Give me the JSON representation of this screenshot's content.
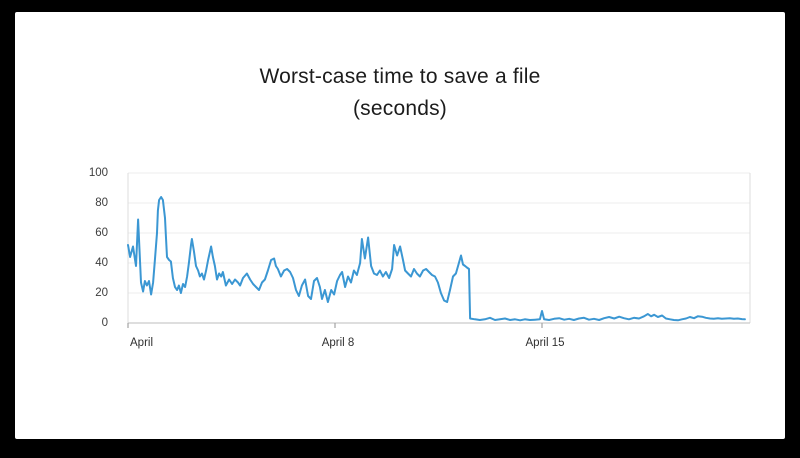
{
  "canvas": {
    "frame_color": "#000000",
    "card_color": "#ffffff"
  },
  "chart_data": {
    "type": "line",
    "title": "Worst-case time to save a file",
    "subtitle": "(seconds)",
    "xlabel": "",
    "ylabel": "",
    "ylim": [
      0,
      100
    ],
    "yticks": [
      0,
      20,
      40,
      60,
      80,
      100
    ],
    "grid": true,
    "legend": "none",
    "line_color": "#3b97d3",
    "axis_color": "#c9c9c9",
    "grid_color": "#ececec",
    "border_color": "#dcdcdc",
    "tick_color": "#a3a3a3",
    "xticks": [
      {
        "day": 0,
        "label": "April",
        "align": "left"
      },
      {
        "day": 7,
        "label": "April 8",
        "align": "center"
      },
      {
        "day": 14,
        "label": "April 15",
        "align": "center"
      }
    ],
    "x_unit": "days since April 1",
    "y_unit": "seconds",
    "points": [
      [
        0,
        52
      ],
      [
        0.07,
        44
      ],
      [
        0.17,
        51
      ],
      [
        0.27,
        38
      ],
      [
        0.34,
        69
      ],
      [
        0.41,
        40
      ],
      [
        0.44,
        27
      ],
      [
        0.51,
        21
      ],
      [
        0.57,
        28
      ],
      [
        0.64,
        25
      ],
      [
        0.71,
        28
      ],
      [
        0.78,
        19
      ],
      [
        0.85,
        27
      ],
      [
        0.91,
        42
      ],
      [
        0.98,
        60
      ],
      [
        1.01,
        75
      ],
      [
        1.05,
        82
      ],
      [
        1.12,
        84
      ],
      [
        1.18,
        82
      ],
      [
        1.25,
        70
      ],
      [
        1.28,
        58
      ],
      [
        1.32,
        44
      ],
      [
        1.39,
        42
      ],
      [
        1.45,
        41
      ],
      [
        1.52,
        30
      ],
      [
        1.59,
        24
      ],
      [
        1.66,
        22
      ],
      [
        1.72,
        25
      ],
      [
        1.79,
        20
      ],
      [
        1.86,
        26
      ],
      [
        1.93,
        24
      ],
      [
        2.0,
        31
      ],
      [
        2.06,
        40
      ],
      [
        2.13,
        52
      ],
      [
        2.16,
        56
      ],
      [
        2.23,
        48
      ],
      [
        2.3,
        38
      ],
      [
        2.37,
        35
      ],
      [
        2.43,
        31
      ],
      [
        2.5,
        33
      ],
      [
        2.57,
        29
      ],
      [
        2.64,
        35
      ],
      [
        2.71,
        42
      ],
      [
        2.81,
        51
      ],
      [
        2.87,
        44
      ],
      [
        2.94,
        38
      ],
      [
        3.01,
        29
      ],
      [
        3.08,
        33
      ],
      [
        3.15,
        31
      ],
      [
        3.21,
        34
      ],
      [
        3.31,
        25
      ],
      [
        3.42,
        29
      ],
      [
        3.52,
        26
      ],
      [
        3.62,
        29
      ],
      [
        3.72,
        27
      ],
      [
        3.79,
        25
      ],
      [
        3.89,
        30
      ],
      [
        4.02,
        33
      ],
      [
        4.13,
        29
      ],
      [
        4.23,
        26
      ],
      [
        4.33,
        24
      ],
      [
        4.43,
        22
      ],
      [
        4.53,
        27
      ],
      [
        4.63,
        29
      ],
      [
        4.73,
        35
      ],
      [
        4.84,
        42
      ],
      [
        4.94,
        43
      ],
      [
        5.0,
        38
      ],
      [
        5.07,
        36
      ],
      [
        5.17,
        31
      ],
      [
        5.28,
        35
      ],
      [
        5.38,
        36
      ],
      [
        5.48,
        34
      ],
      [
        5.58,
        30
      ],
      [
        5.68,
        22
      ],
      [
        5.78,
        18
      ],
      [
        5.88,
        25
      ],
      [
        5.99,
        29
      ],
      [
        6.09,
        18
      ],
      [
        6.19,
        16
      ],
      [
        6.29,
        28
      ],
      [
        6.39,
        30
      ],
      [
        6.49,
        24
      ],
      [
        6.56,
        16
      ],
      [
        6.66,
        22
      ],
      [
        6.76,
        14
      ],
      [
        6.87,
        22
      ],
      [
        6.97,
        19
      ],
      [
        7.07,
        28
      ],
      [
        7.17,
        32
      ],
      [
        7.24,
        34
      ],
      [
        7.34,
        24
      ],
      [
        7.44,
        31
      ],
      [
        7.54,
        27
      ],
      [
        7.64,
        35
      ],
      [
        7.74,
        32
      ],
      [
        7.85,
        40
      ],
      [
        7.91,
        56
      ],
      [
        8.01,
        43
      ],
      [
        8.12,
        57
      ],
      [
        8.22,
        38
      ],
      [
        8.32,
        33
      ],
      [
        8.42,
        32
      ],
      [
        8.52,
        35
      ],
      [
        8.62,
        31
      ],
      [
        8.72,
        34
      ],
      [
        8.83,
        30
      ],
      [
        8.93,
        36
      ],
      [
        9.0,
        52
      ],
      [
        9.1,
        45
      ],
      [
        9.2,
        51
      ],
      [
        9.3,
        42
      ],
      [
        9.37,
        35
      ],
      [
        9.47,
        33
      ],
      [
        9.57,
        31
      ],
      [
        9.67,
        36
      ],
      [
        9.77,
        33
      ],
      [
        9.87,
        31
      ],
      [
        9.98,
        35
      ],
      [
        10.08,
        36
      ],
      [
        10.18,
        34
      ],
      [
        10.28,
        32
      ],
      [
        10.38,
        31
      ],
      [
        10.48,
        27
      ],
      [
        10.58,
        20
      ],
      [
        10.69,
        15
      ],
      [
        10.79,
        14
      ],
      [
        10.89,
        22
      ],
      [
        10.99,
        31
      ],
      [
        11.09,
        33
      ],
      [
        11.19,
        40
      ],
      [
        11.26,
        45
      ],
      [
        11.33,
        39
      ],
      [
        11.4,
        38
      ],
      [
        11.46,
        37
      ],
      [
        11.53,
        36
      ],
      [
        11.57,
        3
      ],
      [
        11.73,
        2.5
      ],
      [
        11.9,
        2
      ],
      [
        12.07,
        2.5
      ],
      [
        12.24,
        3.5
      ],
      [
        12.41,
        2
      ],
      [
        12.58,
        2.5
      ],
      [
        12.75,
        3
      ],
      [
        12.92,
        2
      ],
      [
        13.09,
        2.5
      ],
      [
        13.26,
        1.8
      ],
      [
        13.42,
        2.5
      ],
      [
        13.59,
        2
      ],
      [
        13.76,
        2.2
      ],
      [
        13.93,
        2.5
      ],
      [
        14.0,
        8
      ],
      [
        14.07,
        2.5
      ],
      [
        14.24,
        2
      ],
      [
        14.41,
        2.8
      ],
      [
        14.58,
        3.2
      ],
      [
        14.75,
        2.2
      ],
      [
        14.92,
        2.8
      ],
      [
        15.08,
        2
      ],
      [
        15.25,
        3
      ],
      [
        15.42,
        3.5
      ],
      [
        15.59,
        2.2
      ],
      [
        15.76,
        2.8
      ],
      [
        15.93,
        2
      ],
      [
        16.1,
        3.2
      ],
      [
        16.27,
        4
      ],
      [
        16.44,
        3
      ],
      [
        16.61,
        4.2
      ],
      [
        16.77,
        3.2
      ],
      [
        16.94,
        2.5
      ],
      [
        17.11,
        3.5
      ],
      [
        17.28,
        3
      ],
      [
        17.45,
        4.5
      ],
      [
        17.58,
        6
      ],
      [
        17.69,
        4.5
      ],
      [
        17.79,
        5.5
      ],
      [
        17.92,
        4
      ],
      [
        18.06,
        5
      ],
      [
        18.19,
        3
      ],
      [
        18.33,
        2.5
      ],
      [
        18.46,
        2
      ],
      [
        18.6,
        1.8
      ],
      [
        18.73,
        2.5
      ],
      [
        18.87,
        3
      ],
      [
        19.0,
        4
      ],
      [
        19.14,
        3.2
      ],
      [
        19.27,
        4.5
      ],
      [
        19.41,
        4.2
      ],
      [
        19.54,
        3.5
      ],
      [
        19.68,
        3
      ],
      [
        19.81,
        2.8
      ],
      [
        19.95,
        3.2
      ],
      [
        20.08,
        2.8
      ],
      [
        20.22,
        3
      ],
      [
        20.35,
        3.2
      ],
      [
        20.49,
        2.8
      ],
      [
        20.62,
        3
      ],
      [
        20.76,
        2.6
      ],
      [
        20.86,
        2.5
      ]
    ]
  }
}
